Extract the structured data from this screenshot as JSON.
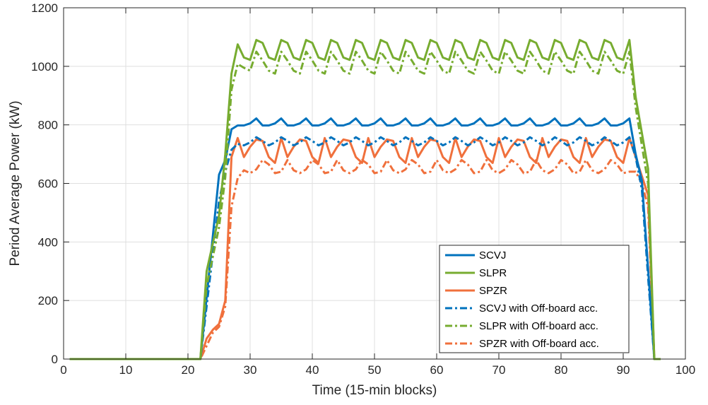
{
  "chart_data": {
    "type": "line",
    "title": "",
    "xlabel": "Time (15-min blocks)",
    "ylabel": "Period Average Power (kW)",
    "xlim": [
      0,
      100
    ],
    "ylim": [
      0,
      1200
    ],
    "xticks": [
      0,
      10,
      20,
      30,
      40,
      50,
      60,
      70,
      80,
      90,
      100
    ],
    "yticks": [
      0,
      200,
      400,
      600,
      800,
      1000,
      1200
    ],
    "grid": true,
    "legend_position": "lower-right",
    "series": [
      {
        "name": "SCVJ",
        "color": "#0072BD",
        "style": "solid",
        "x": [
          1,
          22,
          25,
          26,
          27,
          28,
          29,
          30,
          31,
          32,
          33,
          34,
          35,
          36,
          37,
          38,
          39,
          40,
          41,
          42,
          43,
          44,
          45,
          46,
          47,
          48,
          49,
          50,
          51,
          52,
          53,
          54,
          55,
          56,
          57,
          58,
          59,
          60,
          61,
          62,
          63,
          64,
          65,
          66,
          67,
          68,
          69,
          70,
          71,
          72,
          73,
          74,
          75,
          76,
          77,
          78,
          79,
          80,
          81,
          82,
          83,
          84,
          85,
          86,
          87,
          88,
          89,
          90,
          91,
          92,
          93,
          94,
          95,
          96
        ],
        "y": [
          0,
          0,
          630,
          680,
          785,
          798,
          798,
          805,
          822,
          798,
          798,
          805,
          822,
          798,
          798,
          805,
          822,
          798,
          798,
          805,
          822,
          798,
          798,
          805,
          822,
          798,
          798,
          805,
          822,
          798,
          798,
          805,
          822,
          798,
          798,
          805,
          822,
          798,
          798,
          805,
          822,
          798,
          798,
          805,
          822,
          798,
          798,
          805,
          822,
          798,
          798,
          805,
          822,
          798,
          798,
          805,
          822,
          798,
          798,
          805,
          822,
          798,
          798,
          805,
          822,
          798,
          798,
          805,
          822,
          700,
          610,
          310,
          0,
          0
        ]
      },
      {
        "name": "SLPR",
        "color": "#77AC30",
        "style": "solid",
        "x": [
          1,
          22,
          23,
          25,
          26,
          27,
          28,
          29,
          30,
          31,
          32,
          33,
          34,
          35,
          36,
          37,
          38,
          39,
          40,
          41,
          42,
          43,
          44,
          45,
          46,
          47,
          48,
          49,
          50,
          51,
          52,
          53,
          54,
          55,
          56,
          57,
          58,
          59,
          60,
          61,
          62,
          63,
          64,
          65,
          66,
          67,
          68,
          69,
          70,
          71,
          72,
          73,
          74,
          75,
          76,
          77,
          78,
          79,
          80,
          81,
          82,
          83,
          84,
          85,
          86,
          87,
          88,
          89,
          90,
          91,
          92,
          94,
          95,
          96
        ],
        "y": [
          0,
          0,
          300,
          490,
          700,
          975,
          1075,
          1030,
          1022,
          1090,
          1080,
          1030,
          1022,
          1090,
          1080,
          1030,
          1022,
          1090,
          1080,
          1030,
          1022,
          1090,
          1080,
          1030,
          1022,
          1090,
          1080,
          1030,
          1022,
          1090,
          1080,
          1030,
          1022,
          1090,
          1080,
          1030,
          1022,
          1090,
          1080,
          1030,
          1022,
          1090,
          1080,
          1030,
          1022,
          1090,
          1080,
          1030,
          1022,
          1090,
          1080,
          1030,
          1022,
          1090,
          1080,
          1030,
          1022,
          1090,
          1080,
          1030,
          1022,
          1090,
          1080,
          1030,
          1022,
          1090,
          1080,
          1030,
          1022,
          1090,
          895,
          650,
          0,
          0
        ]
      },
      {
        "name": "SPZR",
        "color": "#F0703C",
        "style": "solid",
        "x": [
          1,
          22,
          23,
          24,
          25,
          26,
          27,
          28,
          29,
          30,
          31,
          32,
          33,
          34,
          35,
          36,
          37,
          38,
          39,
          40,
          41,
          42,
          43,
          44,
          45,
          46,
          47,
          48,
          49,
          50,
          51,
          52,
          53,
          54,
          55,
          56,
          57,
          58,
          59,
          60,
          61,
          62,
          63,
          64,
          65,
          66,
          67,
          68,
          69,
          70,
          71,
          72,
          73,
          74,
          75,
          76,
          77,
          78,
          79,
          80,
          81,
          82,
          83,
          84,
          85,
          86,
          87,
          88,
          89,
          90,
          91,
          92,
          93,
          94,
          95,
          96
        ],
        "y": [
          0,
          0,
          70,
          100,
          120,
          200,
          690,
          755,
          690,
          725,
          750,
          745,
          690,
          670,
          755,
          690,
          725,
          750,
          745,
          690,
          670,
          755,
          690,
          725,
          750,
          745,
          690,
          670,
          755,
          690,
          725,
          750,
          745,
          690,
          670,
          755,
          690,
          725,
          750,
          745,
          690,
          670,
          755,
          690,
          725,
          750,
          745,
          690,
          670,
          755,
          690,
          725,
          750,
          745,
          690,
          670,
          755,
          690,
          725,
          750,
          745,
          690,
          670,
          755,
          690,
          725,
          750,
          745,
          690,
          670,
          755,
          690,
          625,
          560,
          0,
          0
        ]
      },
      {
        "name": "SCVJ with Off-board acc.",
        "color": "#0072BD",
        "style": "dashdot",
        "x": [
          1,
          22,
          25,
          26,
          27,
          28,
          29,
          30,
          31,
          32,
          33,
          34,
          35,
          36,
          37,
          38,
          39,
          40,
          41,
          42,
          43,
          44,
          45,
          46,
          47,
          48,
          49,
          50,
          51,
          52,
          53,
          54,
          55,
          56,
          57,
          58,
          59,
          60,
          61,
          62,
          63,
          64,
          65,
          66,
          67,
          68,
          69,
          70,
          71,
          72,
          73,
          74,
          75,
          76,
          77,
          78,
          79,
          80,
          81,
          82,
          83,
          84,
          85,
          86,
          87,
          88,
          89,
          90,
          91,
          92,
          93,
          94,
          95,
          96
        ],
        "y": [
          0,
          0,
          540,
          640,
          715,
          735,
          730,
          740,
          758,
          745,
          730,
          740,
          758,
          745,
          730,
          740,
          758,
          745,
          730,
          740,
          758,
          745,
          730,
          740,
          758,
          745,
          730,
          740,
          758,
          745,
          730,
          740,
          758,
          745,
          730,
          740,
          758,
          745,
          730,
          740,
          758,
          745,
          730,
          740,
          758,
          745,
          730,
          740,
          758,
          745,
          730,
          740,
          758,
          745,
          730,
          740,
          758,
          745,
          730,
          740,
          758,
          745,
          730,
          740,
          758,
          745,
          730,
          740,
          758,
          690,
          580,
          280,
          0,
          0
        ]
      },
      {
        "name": "SLPR with Off-board acc.",
        "color": "#77AC30",
        "style": "dashdot",
        "x": [
          1,
          22,
          23,
          25,
          26,
          27,
          28,
          29,
          30,
          31,
          32,
          33,
          34,
          35,
          36,
          37,
          38,
          39,
          40,
          41,
          42,
          43,
          44,
          45,
          46,
          47,
          48,
          49,
          50,
          51,
          52,
          53,
          54,
          55,
          56,
          57,
          58,
          59,
          60,
          61,
          62,
          63,
          64,
          65,
          66,
          67,
          68,
          69,
          70,
          71,
          72,
          73,
          74,
          75,
          76,
          77,
          78,
          79,
          80,
          81,
          82,
          83,
          84,
          85,
          86,
          87,
          88,
          89,
          90,
          91,
          92,
          94,
          95,
          96
        ],
        "y": [
          0,
          0,
          250,
          450,
          620,
          920,
          1008,
          995,
          985,
          1050,
          1020,
          985,
          975,
          1050,
          1020,
          985,
          975,
          1050,
          1020,
          985,
          975,
          1050,
          1020,
          985,
          975,
          1050,
          1020,
          985,
          975,
          1050,
          1020,
          985,
          975,
          1050,
          1020,
          985,
          975,
          1050,
          1020,
          985,
          975,
          1050,
          1020,
          985,
          975,
          1050,
          1020,
          985,
          975,
          1050,
          1020,
          985,
          975,
          1050,
          1020,
          985,
          975,
          1050,
          1020,
          985,
          975,
          1050,
          1020,
          985,
          975,
          1050,
          1020,
          985,
          975,
          1050,
          860,
          600,
          0,
          0
        ]
      },
      {
        "name": "SPZR with Off-board acc.",
        "color": "#F0703C",
        "style": "dashdot",
        "x": [
          1,
          22,
          24,
          25,
          26,
          27,
          28,
          29,
          30,
          31,
          32,
          33,
          34,
          35,
          36,
          37,
          38,
          39,
          40,
          41,
          42,
          43,
          44,
          45,
          46,
          47,
          48,
          49,
          50,
          51,
          52,
          53,
          54,
          55,
          56,
          57,
          58,
          59,
          60,
          61,
          62,
          63,
          64,
          65,
          66,
          67,
          68,
          69,
          70,
          71,
          72,
          73,
          74,
          75,
          76,
          77,
          78,
          79,
          80,
          81,
          82,
          83,
          84,
          85,
          86,
          87,
          88,
          89,
          90,
          91,
          92,
          93,
          94,
          95,
          96
        ],
        "y": [
          0,
          0,
          90,
          110,
          180,
          520,
          618,
          645,
          635,
          648,
          680,
          665,
          635,
          640,
          680,
          645,
          635,
          648,
          680,
          665,
          635,
          640,
          680,
          645,
          635,
          648,
          680,
          665,
          635,
          640,
          680,
          645,
          635,
          648,
          680,
          665,
          635,
          640,
          680,
          645,
          635,
          648,
          680,
          665,
          635,
          640,
          680,
          645,
          635,
          648,
          680,
          665,
          635,
          640,
          680,
          645,
          635,
          648,
          680,
          665,
          635,
          640,
          680,
          645,
          635,
          648,
          680,
          665,
          635,
          640,
          640,
          600,
          520,
          0,
          0
        ]
      }
    ]
  }
}
